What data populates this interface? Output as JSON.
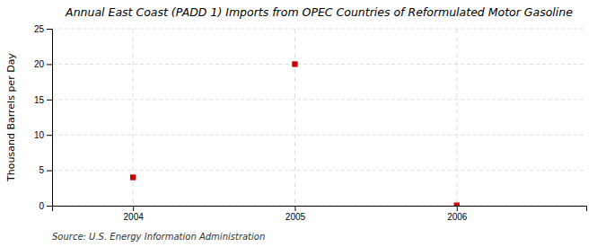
{
  "chart_data": {
    "type": "scatter",
    "title": "Annual East Coast (PADD 1) Imports from OPEC Countries of Reformulated Motor Gasoline",
    "ylabel": "Thousand Barrels per Day",
    "source": "Source: U.S. Energy Information Administration",
    "x": [
      2004,
      2005,
      2006
    ],
    "values": [
      4.0,
      20.0,
      0.05
    ],
    "xlim": [
      2003.5,
      2006.8
    ],
    "ylim": [
      0,
      25
    ],
    "xticks": [
      2004,
      2005,
      2006
    ],
    "yticks": [
      0,
      5,
      10,
      15,
      20,
      25
    ],
    "color": "#cc0000",
    "marker": "square",
    "grid": true
  }
}
